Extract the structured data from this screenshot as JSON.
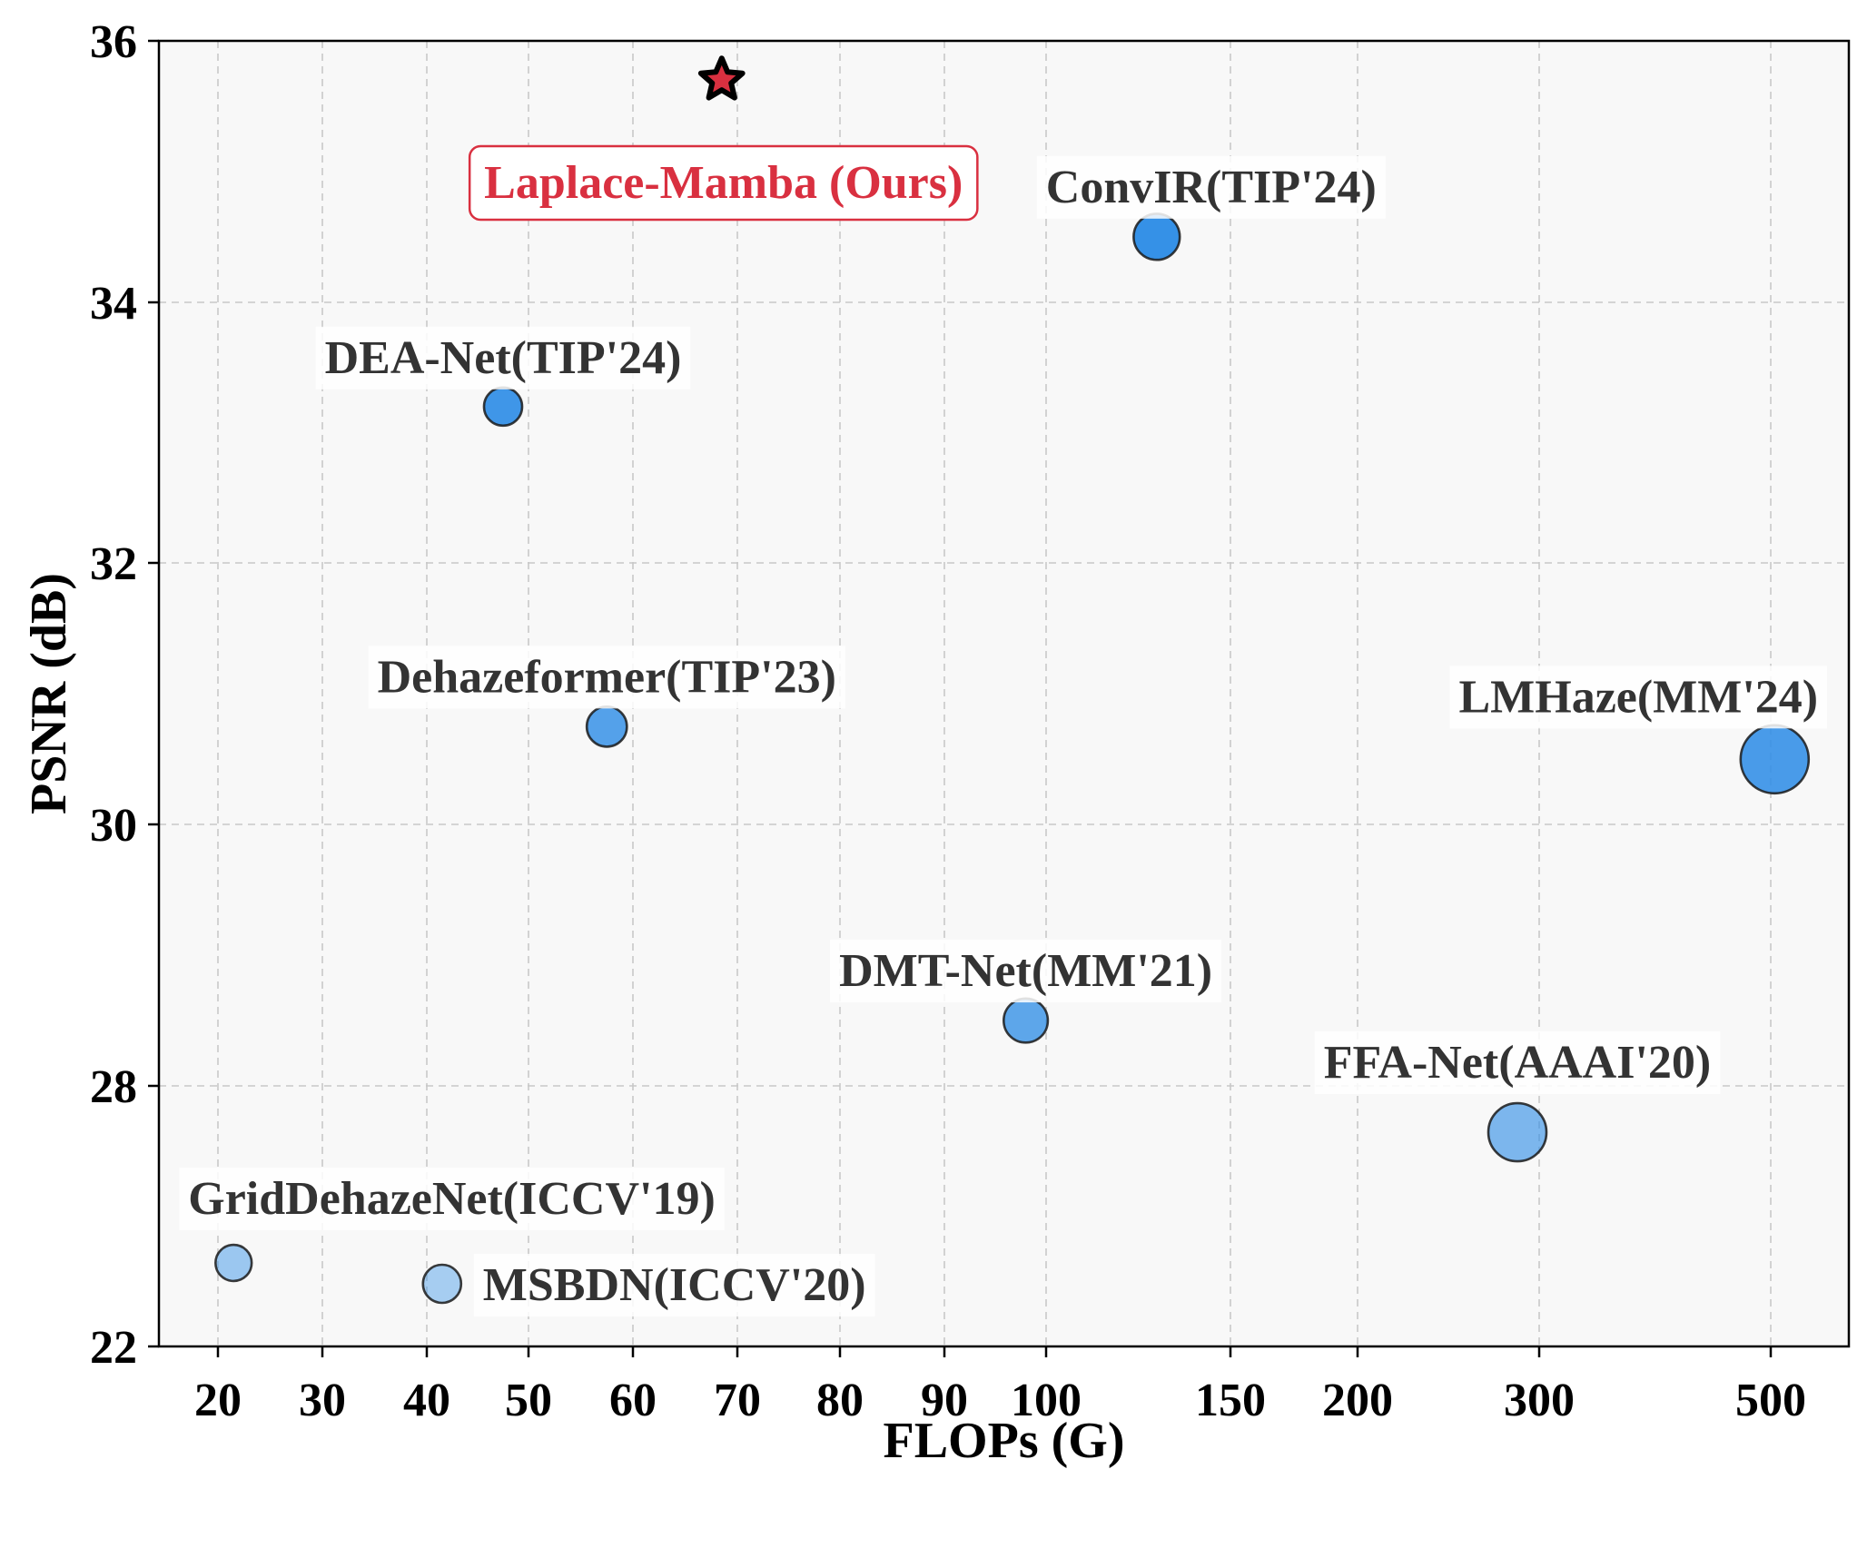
{
  "chart_data": {
    "type": "scatter",
    "title": "",
    "xlabel": "FLOPs (G)",
    "ylabel": "PSNR (dB)",
    "x_ticks": [
      20,
      30,
      40,
      50,
      60,
      70,
      80,
      90,
      100,
      150,
      200,
      300,
      500
    ],
    "x_tick_labels": [
      "20",
      "30",
      "40",
      "50",
      "60",
      "70",
      "80",
      "90",
      "100",
      "150",
      "200",
      "300",
      "500"
    ],
    "y_ticks": [
      "22",
      "28",
      "30",
      "32",
      "34",
      "36"
    ],
    "grid": true,
    "colors": {
      "point": "#2a8be6",
      "ours": "#d93040",
      "ours_border": "#d93040",
      "label": "#333333",
      "plot_bg": "#f8f8f8"
    },
    "points": [
      {
        "name": "GridDehazeNet(ICCV'19)",
        "flops": 21.5,
        "psnr": 22.4,
        "relative_size": 0.45,
        "opacity": 0.45
      },
      {
        "name": "MSBDN(ICCV'20)",
        "flops": 41.5,
        "psnr": 22.3,
        "relative_size": 0.5,
        "opacity": 0.4
      },
      {
        "name": "DEA-Net(TIP'24)",
        "flops": 47.5,
        "psnr": 33.2,
        "relative_size": 0.5,
        "opacity": 0.9
      },
      {
        "name": "Dehazeformer(TIP'23)",
        "flops": 57.5,
        "psnr": 30.75,
        "relative_size": 0.55,
        "opacity": 0.8
      },
      {
        "name": "DMT-Net(MM'21)",
        "flops": 98,
        "psnr": 28.5,
        "relative_size": 0.65,
        "opacity": 0.75
      },
      {
        "name": "ConvIR(TIP'24)",
        "flops": 130,
        "psnr": 34.5,
        "relative_size": 0.7,
        "opacity": 0.95
      },
      {
        "name": "FFA-Net(AAAI'20)",
        "flops": 288,
        "psnr": 27.65,
        "relative_size": 1.0,
        "opacity": 0.6
      },
      {
        "name": "LMHaze(MM'24)",
        "flops": 505,
        "psnr": 30.5,
        "relative_size": 1.25,
        "opacity": 0.85
      }
    ],
    "ours": {
      "name": "Laplace-Mamba (Ours)",
      "flops": 68.5,
      "psnr": 35.7,
      "marker": "star"
    }
  }
}
